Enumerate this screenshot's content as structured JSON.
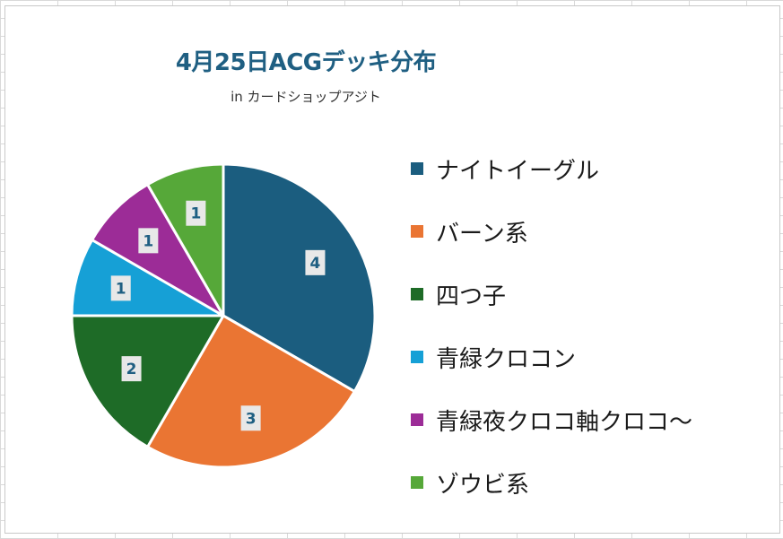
{
  "chart_data": {
    "type": "pie",
    "title": "4月25日ACGデッキ分布",
    "subtitle": "in カードショップアジト",
    "categories": [
      "ナイトイーグル",
      "バーン系",
      "四つ子",
      "青緑クロコン",
      "青緑夜クロコ軸クロコ～",
      "ゾウビ系"
    ],
    "values": [
      4,
      3,
      2,
      1,
      1,
      1
    ],
    "colors": [
      "#1b5d7f",
      "#ea7533",
      "#1e6b27",
      "#16a0d6",
      "#9c2c97",
      "#56a839"
    ],
    "data_labels": [
      "4",
      "3",
      "2",
      "1",
      "1",
      "1"
    ],
    "legend_position": "right"
  }
}
